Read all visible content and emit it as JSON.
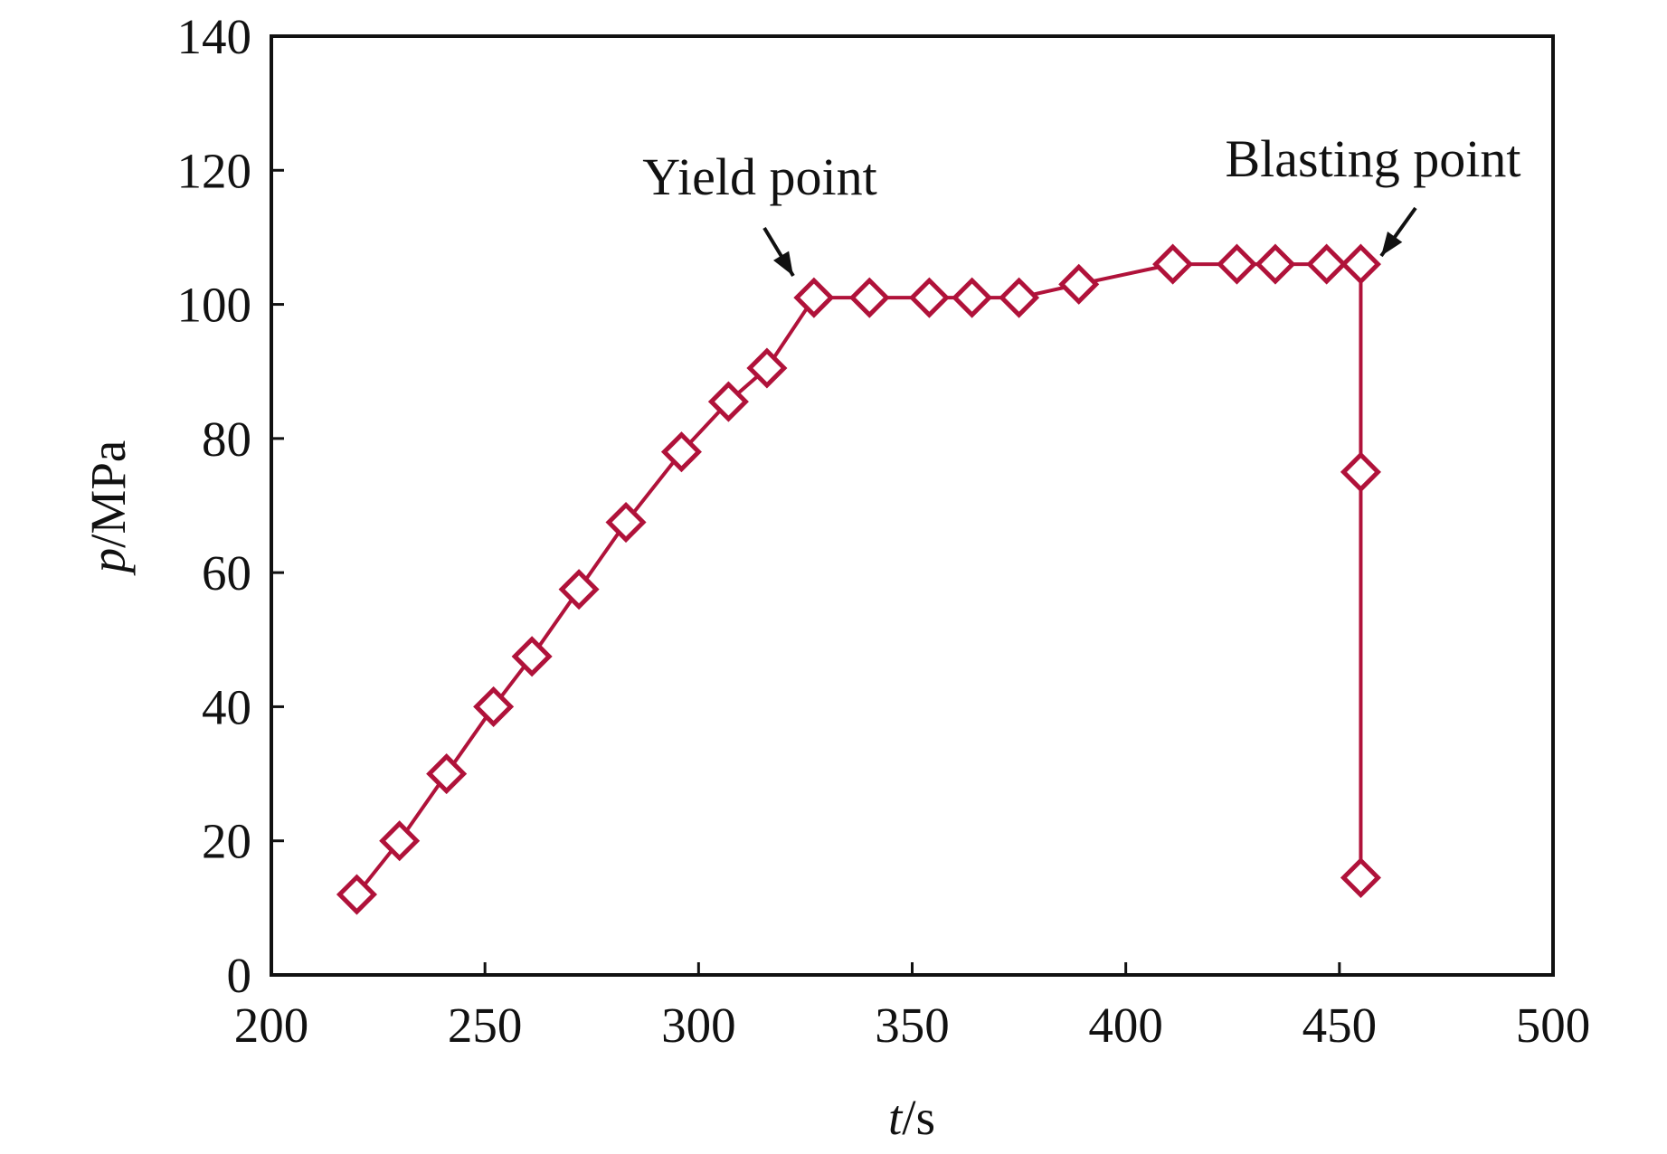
{
  "chart_data": {
    "type": "line",
    "title": "",
    "xlabel": {
      "var": "t",
      "unit": "/s"
    },
    "ylabel": {
      "var": "p",
      "unit": "/MPa"
    },
    "xlim": [
      200,
      500
    ],
    "ylim": [
      0,
      140
    ],
    "x_ticks": [
      200,
      250,
      300,
      350,
      400,
      450,
      500
    ],
    "y_ticks": [
      0,
      20,
      40,
      60,
      80,
      100,
      120,
      140
    ],
    "grid": false,
    "legend": "none",
    "series_color": "#b0123a",
    "marker": "diamond-open",
    "series": [
      {
        "x": [
          220,
          230,
          241,
          252,
          261,
          272,
          283,
          296,
          307,
          316,
          327,
          340,
          354,
          364,
          375,
          389,
          411,
          426,
          435,
          447,
          455,
          455,
          455
        ],
        "y": [
          12,
          20,
          30,
          40,
          47.5,
          57.5,
          67.5,
          78,
          85.5,
          90.5,
          101,
          101,
          101,
          101,
          101,
          103,
          106,
          106,
          106,
          106,
          106,
          75,
          14.5
        ]
      }
    ],
    "annotations": [
      {
        "text": "Yield point",
        "x": 327,
        "y": 101
      },
      {
        "text": "Blasting point",
        "x": 455,
        "y": 106
      }
    ]
  }
}
